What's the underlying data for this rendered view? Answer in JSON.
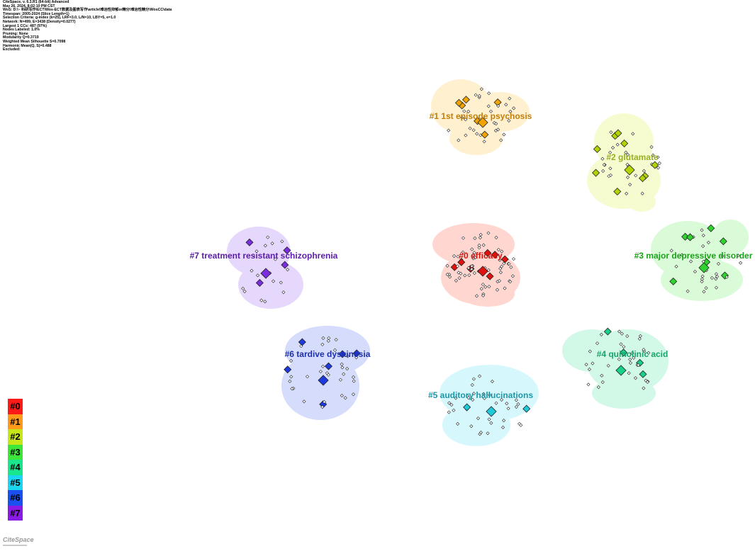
{
  "info_lines": [
    "CiteSpace, v. 6.3.R1 (64-bit) Advanced",
    "May 26, 2024, 8:02:10 PM CST",
    "WoS: D:\\~ 科研写作\\ECT\\Wos-ECT数据及图表写作\\article\\难治性抑郁or精分\\难治性精分\\WosCC\\data",
    "Timespan: 2005-2024 (Slice Length=1)",
    "Selection Criteria: g-index (k=25), LRF=3.0, L/N=10, LBY=5, e=1.0",
    "Network: N=499, E=3438 (Density=0.0277)",
    "Largest 1 CCs: 487 (97%)",
    "Nodes Labeled: 1.0%",
    "Pruning: None",
    "Modularity Q=0.3719",
    "Weighted Mean Silhouette S=0.7098",
    "Harmonic Mean(Q, S)=0.488",
    "Excluded:"
  ],
  "clusters": [
    {
      "id": 0,
      "label": "#0 efficacy",
      "color": "#e0120f",
      "fill": "#ffd6d0",
      "label_color": "#d2160e"
    },
    {
      "id": 1,
      "label": "#1 1st episode psychosis",
      "color": "#f0a400",
      "fill": "#fff0cf",
      "label_color": "#c07f0b"
    },
    {
      "id": 2,
      "label": "#2 glutamate",
      "color": "#b5d300",
      "fill": "#f6fcd0",
      "label_color": "#97b01e"
    },
    {
      "id": 3,
      "label": "#3 major depressive disorder",
      "color": "#2fd32f",
      "fill": "#d9fbd7",
      "label_color": "#1ba11b"
    },
    {
      "id": 4,
      "label": "#4 quinolinic acid",
      "color": "#19d08a",
      "fill": "#d2f8e7",
      "label_color": "#17a468"
    },
    {
      "id": 5,
      "label": "#5 auditory hallucinations",
      "color": "#1ec9da",
      "fill": "#d6f8fc",
      "label_color": "#1b98a8"
    },
    {
      "id": 6,
      "label": "#6 tardive dyskinesia",
      "color": "#1e3adf",
      "fill": "#d5dcfc",
      "label_color": "#1d2fa9"
    },
    {
      "id": 7,
      "label": "#7 treatment resistant schizophrenia",
      "color": "#7a2ee0",
      "fill": "#e6d8fc",
      "label_color": "#5b1da7"
    }
  ],
  "legend": [
    {
      "label": "#0",
      "color": "#ff1a1a"
    },
    {
      "label": "#1",
      "color": "#ff9a1a"
    },
    {
      "label": "#2",
      "color": "#c6e61a"
    },
    {
      "label": "#3",
      "color": "#3ee63a"
    },
    {
      "label": "#4",
      "color": "#1ae68e"
    },
    {
      "label": "#5",
      "color": "#1ad6f0"
    },
    {
      "label": "#6",
      "color": "#1a4ff0"
    },
    {
      "label": "#7",
      "color": "#8a1ae6"
    }
  ],
  "logo_text": "CiteSpace"
}
